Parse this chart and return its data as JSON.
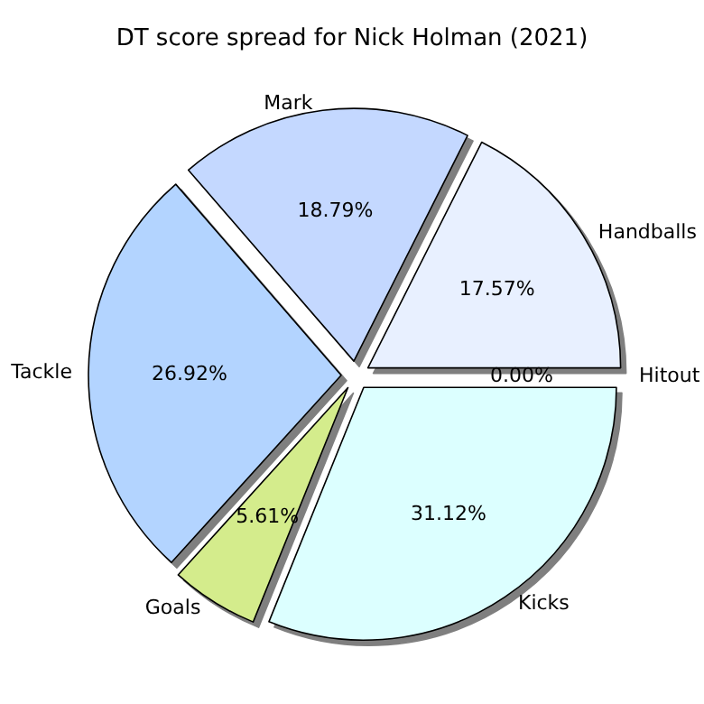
{
  "chart_data": {
    "type": "pie",
    "title": "DT score spread for Nick Holman (2021)",
    "categories": [
      "Handballs",
      "Mark",
      "Tackle",
      "Goals",
      "Kicks",
      "Hitout"
    ],
    "values": [
      17.57,
      18.79,
      26.92,
      5.61,
      31.12,
      0.0
    ],
    "colors": [
      "#e8f0ff",
      "#c4d8ff",
      "#b3d4ff",
      "#d4ec8c",
      "#dcffff",
      "#f0f0ff"
    ],
    "value_labels": [
      "17.57%",
      "18.79%",
      "26.92%",
      "5.61%",
      "31.12%",
      "0.00%"
    ],
    "legend": false
  }
}
